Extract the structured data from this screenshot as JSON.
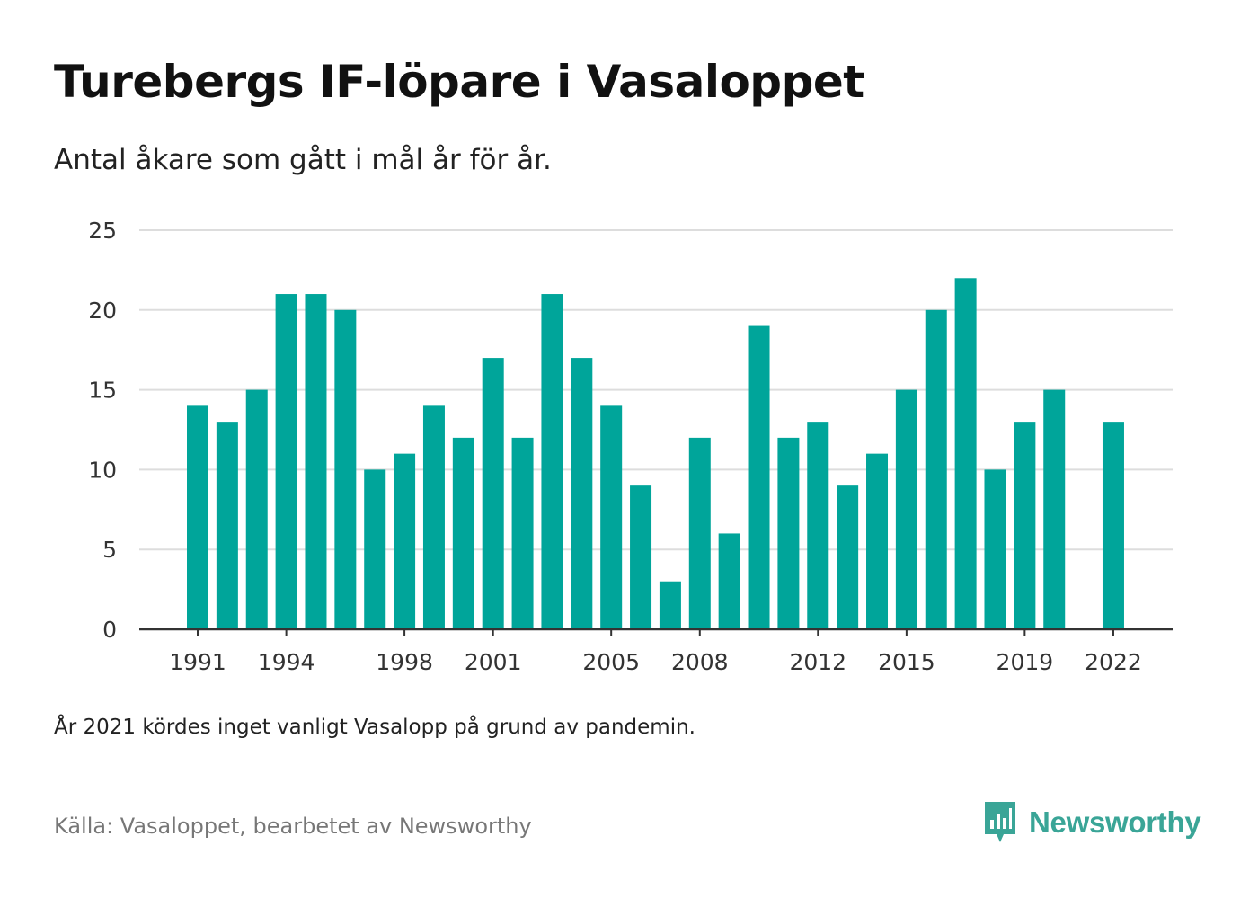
{
  "title": "Turebergs IF-löpare i Vasaloppet",
  "subtitle": "Antal åkare som gått i mål år för år.",
  "note": "År 2021 kördes inget vanligt Vasalopp på grund av pandemin.",
  "source": "Källa: Vasaloppet, bearbetet av Newsworthy",
  "logo_text": "Newsworthy",
  "colors": {
    "bar": "#00a59a",
    "grid": "#dddddd",
    "axis": "#333333",
    "brand": "#3aa597"
  },
  "chart_data": {
    "type": "bar",
    "x": [
      1991,
      1992,
      1993,
      1994,
      1995,
      1996,
      1997,
      1998,
      1999,
      2000,
      2001,
      2002,
      2003,
      2004,
      2005,
      2006,
      2007,
      2008,
      2009,
      2010,
      2011,
      2012,
      2013,
      2014,
      2015,
      2016,
      2017,
      2018,
      2019,
      2020,
      2021,
      2022
    ],
    "values": [
      14,
      13,
      15,
      21,
      21,
      20,
      10,
      11,
      14,
      12,
      17,
      12,
      21,
      17,
      14,
      9,
      3,
      12,
      6,
      19,
      12,
      13,
      9,
      11,
      15,
      20,
      22,
      10,
      13,
      15,
      null,
      13
    ],
    "x_tick_labels": [
      "1991",
      "1994",
      "1998",
      "2001",
      "2005",
      "2008",
      "2012",
      "2015",
      "2019",
      "2022"
    ],
    "y_ticks": [
      0,
      5,
      10,
      15,
      20,
      25
    ],
    "ylim": [
      0,
      25
    ],
    "grid": true
  }
}
